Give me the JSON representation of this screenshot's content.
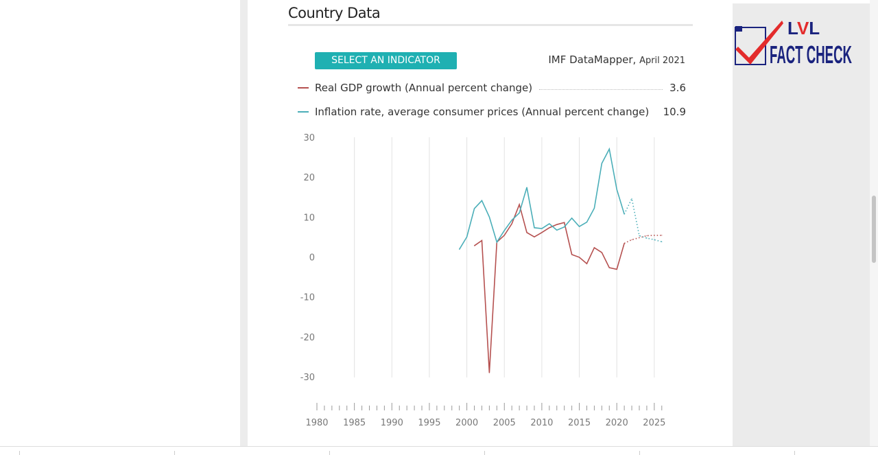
{
  "page": {
    "title": "Country Data",
    "select_button": "SELECT AN INDICATOR",
    "source": "IMF DataMapper,",
    "source_date": "April 2021",
    "logo_text": "LVL FACT CHECK"
  },
  "chart_data": {
    "type": "line",
    "title": "",
    "xlabel": "",
    "ylabel": "",
    "xlim": [
      1980,
      2026
    ],
    "ylim": [
      -30,
      30
    ],
    "x_ticks": [
      1980,
      1985,
      1990,
      1995,
      2000,
      2005,
      2010,
      2015,
      2020,
      2025
    ],
    "y_ticks": [
      30,
      20,
      10,
      0,
      -10,
      -20,
      -30
    ],
    "grid": "vertical",
    "legend": "top",
    "projection_start": 2021,
    "series": [
      {
        "name": "Real GDP growth (Annual percent change)",
        "legend_value": "3.6",
        "color": "#b5504f",
        "x": [
          2001,
          2002,
          2003,
          2004,
          2005,
          2006,
          2007,
          2008,
          2009,
          2010,
          2011,
          2012,
          2013,
          2014,
          2015,
          2016,
          2017,
          2018,
          2019,
          2020,
          2021,
          2022,
          2023,
          2024,
          2025,
          2026
        ],
        "y": [
          3.0,
          4.3,
          -28.8,
          3.9,
          5.6,
          8.5,
          13.3,
          6.3,
          5.2,
          6.3,
          7.5,
          8.3,
          8.8,
          0.8,
          0.1,
          -1.5,
          2.5,
          1.3,
          -2.5,
          -2.9,
          3.6,
          4.5,
          5.0,
          5.5,
          5.6,
          5.6
        ]
      },
      {
        "name": "Inflation rate, average consumer prices (Annual percent change)",
        "legend_value": "10.9",
        "color": "#4aaeb8",
        "x": [
          1999,
          2000,
          2001,
          2002,
          2003,
          2004,
          2005,
          2006,
          2007,
          2008,
          2009,
          2010,
          2011,
          2012,
          2013,
          2014,
          2015,
          2016,
          2017,
          2018,
          2019,
          2020,
          2021,
          2022,
          2023,
          2024,
          2025,
          2026
        ],
        "y": [
          2.1,
          5.2,
          12.3,
          14.3,
          10.2,
          3.9,
          6.8,
          9.4,
          11.2,
          17.6,
          7.5,
          7.3,
          8.5,
          6.9,
          7.7,
          9.9,
          7.8,
          8.9,
          12.4,
          23.6,
          27.2,
          17.1,
          10.9,
          14.8,
          5.5,
          4.9,
          4.5,
          4.0
        ]
      }
    ]
  }
}
